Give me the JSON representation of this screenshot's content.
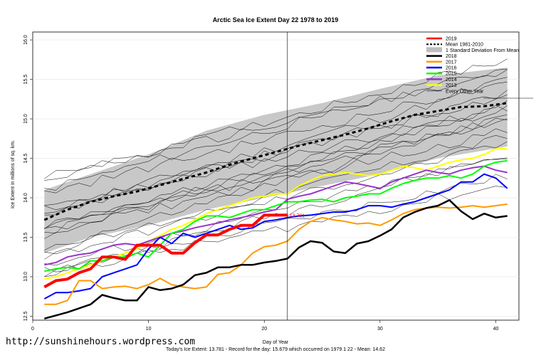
{
  "site": "http://sunshinehours.wordpress.com",
  "footer": "Today's Ice Extent: 13.781  - Record for the day: 15.679 which occurred on 1979 1 22  - Mean: 14.62",
  "chart_data": {
    "type": "line",
    "title": "Arctic Sea Ice Extent Day 22 1978 to 2019",
    "xlabel": "Day of Year",
    "ylabel": "Ice Extent in millions of sq. km.",
    "xlim": [
      0,
      42
    ],
    "ylim": [
      12.45,
      16.1
    ],
    "xticks": [
      0,
      10,
      20,
      30,
      40
    ],
    "yticks": [
      12.5,
      13.0,
      13.5,
      14.0,
      14.5,
      15.0,
      15.5,
      16.0
    ],
    "ytick_labels": [
      "12.5",
      "13.0",
      "13.5",
      "14.0",
      "14.5",
      "15.0",
      "15.5",
      "16.0"
    ],
    "current_day": 22,
    "current_value_label": "13.781",
    "legend_position": "top-right",
    "legend": [
      {
        "label": "2019",
        "color": "#ff0000",
        "style": "solid"
      },
      {
        "label": "Mean 1981-2010",
        "color": "#000000",
        "style": "dashed"
      },
      {
        "label": "1 Standard Deviation From Mean",
        "color": "#bdbdbd",
        "style": "band"
      },
      {
        "label": "2018",
        "color": "#000000",
        "style": "solid"
      },
      {
        "label": "2017",
        "color": "#ff9900",
        "style": "solid"
      },
      {
        "label": "2016",
        "color": "#0000ff",
        "style": "solid"
      },
      {
        "label": "2015",
        "color": "#00ff00",
        "style": "solid"
      },
      {
        "label": "2014",
        "color": "#9933cc",
        "style": "solid"
      },
      {
        "label": "2013",
        "color": "#ffff00",
        "style": "solid"
      },
      {
        "label": "Every Other Year",
        "color": "#000000",
        "style": "thin"
      }
    ],
    "band": {
      "upper": [
        [
          1,
          14.1
        ],
        [
          5,
          14.3
        ],
        [
          10,
          14.55
        ],
        [
          15,
          14.85
        ],
        [
          20,
          15.05
        ],
        [
          25,
          15.2
        ],
        [
          30,
          15.38
        ],
        [
          35,
          15.55
        ],
        [
          41,
          15.65
        ]
      ],
      "lower": [
        [
          1,
          13.3
        ],
        [
          5,
          13.5
        ],
        [
          10,
          13.65
        ],
        [
          15,
          13.85
        ],
        [
          20,
          14.0
        ],
        [
          25,
          14.15
        ],
        [
          30,
          14.3
        ],
        [
          35,
          14.5
        ],
        [
          41,
          14.65
        ]
      ]
    },
    "series": [
      {
        "name": "2019",
        "color": "#ff0000",
        "width": 4,
        "x": [
          1,
          2,
          3,
          4,
          5,
          6,
          7,
          8,
          9,
          10,
          11,
          12,
          13,
          14,
          15,
          16,
          17,
          18,
          19,
          20,
          21,
          22
        ],
        "y": [
          12.87,
          12.95,
          12.97,
          13.05,
          13.1,
          13.25,
          13.25,
          13.22,
          13.4,
          13.4,
          13.4,
          13.3,
          13.3,
          13.43,
          13.53,
          13.53,
          13.6,
          13.65,
          13.65,
          13.78,
          13.78,
          13.781
        ]
      },
      {
        "name": "Mean 1981-2010",
        "color": "#000000",
        "width": 3,
        "dash": "5,4",
        "x": [
          1,
          3,
          5,
          7,
          9,
          11,
          13,
          15,
          17,
          19,
          21,
          23,
          25,
          27,
          29,
          31,
          33,
          35,
          37,
          39,
          41
        ],
        "y": [
          13.72,
          13.85,
          13.95,
          14.02,
          14.08,
          14.16,
          14.24,
          14.32,
          14.42,
          14.5,
          14.58,
          14.66,
          14.73,
          14.8,
          14.88,
          14.97,
          15.05,
          15.1,
          15.15,
          15.16,
          15.2
        ]
      },
      {
        "name": "2018",
        "color": "#000000",
        "width": 2.5,
        "x": [
          1,
          3,
          5,
          6,
          7,
          8,
          9,
          10,
          11,
          12,
          13,
          14,
          15,
          16,
          17,
          18,
          19,
          20,
          21,
          22,
          23,
          24,
          25,
          26,
          27,
          28,
          29,
          30,
          31,
          32,
          33,
          34,
          35,
          36,
          37,
          38,
          39,
          40,
          41
        ],
        "y": [
          12.47,
          12.55,
          12.65,
          12.77,
          12.73,
          12.7,
          12.7,
          12.87,
          12.83,
          12.85,
          12.9,
          13.02,
          13.05,
          13.12,
          13.12,
          13.15,
          13.15,
          13.18,
          13.2,
          13.23,
          13.37,
          13.45,
          13.43,
          13.32,
          13.3,
          13.42,
          13.45,
          13.52,
          13.6,
          13.75,
          13.82,
          13.87,
          13.9,
          13.97,
          13.83,
          13.73,
          13.8,
          13.75,
          13.77
        ]
      },
      {
        "name": "2017",
        "color": "#ff9900",
        "width": 2,
        "x": [
          1,
          2,
          3,
          4,
          5,
          6,
          7,
          8,
          9,
          10,
          11,
          12,
          13,
          14,
          15,
          16,
          17,
          18,
          19,
          20,
          21,
          22,
          23,
          24,
          25,
          26,
          27,
          28,
          29,
          30,
          31,
          32,
          33,
          34,
          35,
          36,
          37,
          38,
          39,
          40,
          41
        ],
        "y": [
          12.65,
          12.65,
          12.7,
          12.95,
          12.95,
          12.85,
          12.87,
          12.88,
          12.85,
          12.9,
          12.98,
          12.9,
          12.87,
          12.85,
          12.87,
          13.03,
          13.05,
          13.15,
          13.3,
          13.38,
          13.4,
          13.45,
          13.6,
          13.7,
          13.75,
          13.72,
          13.7,
          13.67,
          13.68,
          13.65,
          13.72,
          13.8,
          13.85,
          13.87,
          13.88,
          13.87,
          13.88,
          13.9,
          13.88,
          13.9,
          13.92
        ]
      },
      {
        "name": "2016",
        "color": "#0000ff",
        "width": 2,
        "x": [
          1,
          2,
          3,
          4,
          5,
          6,
          7,
          8,
          9,
          10,
          11,
          12,
          13,
          14,
          15,
          16,
          17,
          18,
          19,
          20,
          21,
          22,
          23,
          24,
          25,
          26,
          27,
          28,
          29,
          30,
          31,
          32,
          33,
          34,
          35,
          36,
          37,
          38,
          39,
          40,
          41
        ],
        "y": [
          12.72,
          12.8,
          12.8,
          12.82,
          12.85,
          13.0,
          13.05,
          13.1,
          13.15,
          13.35,
          13.5,
          13.42,
          13.55,
          13.5,
          13.55,
          13.6,
          13.65,
          13.6,
          13.62,
          13.7,
          13.72,
          13.75,
          13.77,
          13.78,
          13.8,
          13.82,
          13.82,
          13.85,
          13.9,
          13.9,
          13.88,
          13.92,
          13.95,
          14.0,
          14.05,
          14.1,
          14.2,
          14.2,
          14.3,
          14.25,
          14.12
        ]
      },
      {
        "name": "2015",
        "color": "#00ff00",
        "width": 2,
        "x": [
          1,
          2,
          3,
          4,
          5,
          6,
          7,
          8,
          9,
          10,
          11,
          12,
          13,
          14,
          15,
          16,
          17,
          18,
          19,
          20,
          21,
          22,
          23,
          24,
          25,
          26,
          27,
          28,
          29,
          30,
          31,
          32,
          33,
          34,
          35,
          36,
          37,
          38,
          39,
          40,
          41
        ],
        "y": [
          13.07,
          13.1,
          13.12,
          13.1,
          13.2,
          13.2,
          13.25,
          13.25,
          13.3,
          13.25,
          13.4,
          13.55,
          13.6,
          13.7,
          13.77,
          13.77,
          13.75,
          13.8,
          13.85,
          13.85,
          13.9,
          13.95,
          13.95,
          13.97,
          13.98,
          13.95,
          14.0,
          14.02,
          14.05,
          14.05,
          14.12,
          14.18,
          14.22,
          14.25,
          14.25,
          14.28,
          14.25,
          14.3,
          14.4,
          14.45,
          14.47
        ]
      },
      {
        "name": "2014",
        "color": "#9933cc",
        "width": 2,
        "x": [
          1,
          2,
          3,
          4,
          5,
          6,
          7,
          8,
          9,
          10,
          11,
          12,
          13,
          14,
          15,
          16,
          17,
          18,
          19,
          20,
          21,
          22,
          23,
          24,
          25,
          26,
          27,
          28,
          29,
          30,
          31,
          32,
          33,
          34,
          35,
          36,
          37,
          38,
          39,
          40,
          41
        ],
        "y": [
          13.15,
          13.18,
          13.25,
          13.28,
          13.3,
          13.35,
          13.4,
          13.42,
          13.4,
          13.45,
          13.5,
          13.55,
          13.58,
          13.62,
          13.65,
          13.68,
          13.72,
          13.75,
          13.78,
          13.82,
          13.85,
          13.98,
          14.02,
          14.05,
          14.1,
          14.15,
          14.2,
          14.18,
          14.15,
          14.12,
          14.2,
          14.25,
          14.3,
          14.35,
          14.32,
          14.3,
          14.35,
          14.38,
          14.4,
          14.35,
          14.32
        ]
      },
      {
        "name": "2013",
        "color": "#ffff00",
        "width": 2,
        "x": [
          1,
          2,
          3,
          4,
          5,
          6,
          7,
          8,
          9,
          10,
          11,
          12,
          13,
          14,
          15,
          16,
          17,
          18,
          19,
          20,
          21,
          22,
          23,
          24,
          25,
          26,
          27,
          28,
          29,
          30,
          31,
          32,
          33,
          34,
          35,
          36,
          37,
          38,
          39,
          40,
          41
        ],
        "y": [
          12.97,
          13.0,
          13.05,
          13.1,
          13.15,
          13.2,
          13.25,
          13.3,
          13.35,
          13.45,
          13.52,
          13.6,
          13.65,
          13.72,
          13.8,
          13.85,
          13.9,
          13.95,
          14.0,
          14.02,
          14.05,
          14.05,
          14.15,
          14.22,
          14.28,
          14.3,
          14.32,
          14.3,
          14.28,
          14.3,
          14.35,
          14.4,
          14.38,
          14.35,
          14.4,
          14.45,
          14.48,
          14.5,
          14.55,
          14.62,
          14.62
        ]
      }
    ]
  }
}
